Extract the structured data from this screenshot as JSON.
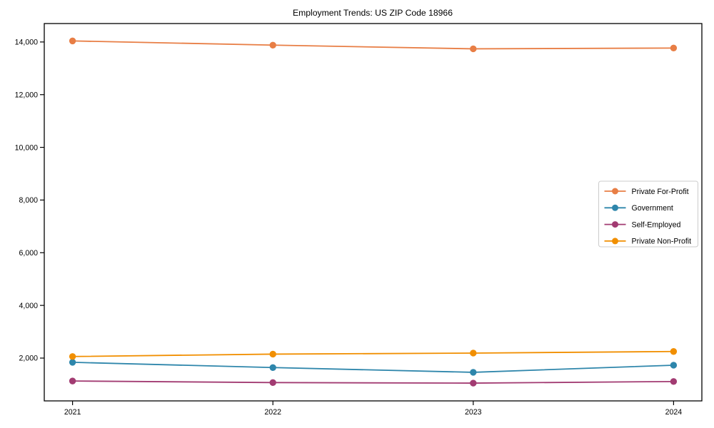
{
  "title": "Employment Trends: US ZIP Code 18966",
  "colors": {
    "frame": "#000000",
    "background": "#ffffff",
    "legend_border": "#cccccc",
    "legend_background": "#ffffff",
    "private_for_profit": "#E87E45",
    "government": "#2E86AB",
    "self_employed": "#A23B72",
    "private_non_profit": "#F18F01"
  },
  "chart_data": {
    "type": "line",
    "title": "Employment Trends: US ZIP Code 18966",
    "xlabel": "",
    "ylabel": "",
    "categories": [
      "2021",
      "2022",
      "2023",
      "2024"
    ],
    "series": [
      {
        "name": "Private For-Profit",
        "color": "#E87E45",
        "values": [
          14040,
          13880,
          13740,
          13770
        ]
      },
      {
        "name": "Government",
        "color": "#2E86AB",
        "values": [
          1840,
          1640,
          1460,
          1730
        ]
      },
      {
        "name": "Self-Employed",
        "color": "#A23B72",
        "values": [
          1130,
          1070,
          1050,
          1110
        ]
      },
      {
        "name": "Private Non-Profit",
        "color": "#F18F01",
        "values": [
          2060,
          2150,
          2190,
          2250
        ]
      }
    ],
    "ylim": [
      375,
      14700
    ],
    "yticks": [
      2000,
      4000,
      6000,
      8000,
      10000,
      12000,
      14000
    ],
    "ytick_labels": [
      "2,000",
      "4,000",
      "6,000",
      "8,000",
      "10,000",
      "12,000",
      "14,000"
    ],
    "grid": false,
    "legend_position": "center right",
    "marker": "circle"
  }
}
